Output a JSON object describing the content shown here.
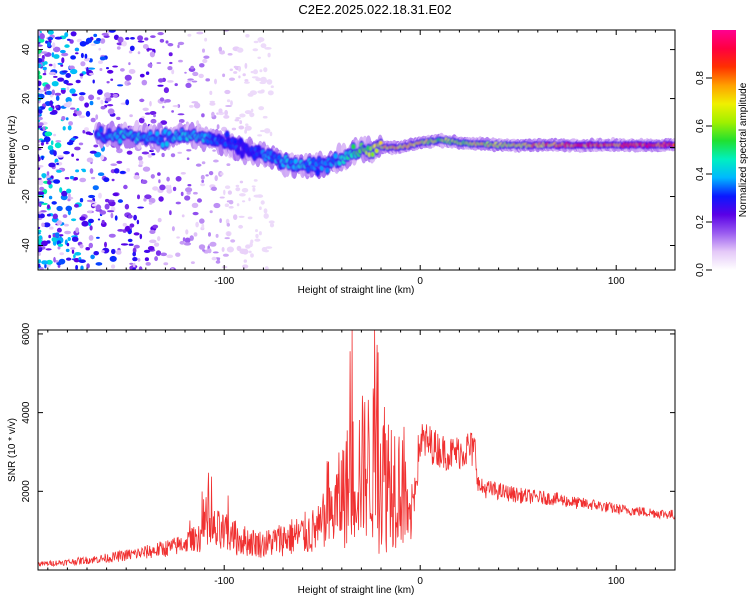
{
  "title": "C2E2.2025.022.18.31.E02",
  "colors": {
    "snr_line": "#f03030",
    "axis": "#000000"
  },
  "chart_data": [
    {
      "type": "heatmap",
      "xlabel": "Height of straight line (km)",
      "ylabel": "Frequency (Hz)",
      "xlim": [
        -195,
        130
      ],
      "ylim": [
        -50,
        48
      ],
      "xticks": [
        -100,
        0,
        100
      ],
      "yticks": [
        -40,
        -20,
        0,
        20,
        40
      ],
      "colorbar": {
        "label": "Normalized spectral amplitude",
        "range": [
          0,
          1
        ],
        "ticks": [
          "0.0",
          "0.2",
          "0.4",
          "0.6",
          "0.8"
        ],
        "colormap": [
          "#ffffff",
          "#e4c8f8",
          "#9a5cf0",
          "#5a00e6",
          "#0a18ff",
          "#00b8ff",
          "#00f0c0",
          "#20e030",
          "#a0f000",
          "#f0f000",
          "#ffa000",
          "#ff3000",
          "#ff0040",
          "#ff0090"
        ]
      },
      "ridge": {
        "x": [
          -165,
          -150,
          -130,
          -115,
          -100,
          -90,
          -80,
          -70,
          -60,
          -50,
          -40,
          -30,
          -20,
          -10,
          0,
          10,
          20,
          40,
          60,
          80,
          100,
          120,
          130
        ],
        "frequency": [
          5,
          5,
          4,
          5,
          2,
          -1,
          -3,
          -6,
          -8,
          -7,
          -4,
          -1,
          0,
          0,
          2,
          3,
          2,
          1,
          1,
          1,
          1,
          1,
          1
        ],
        "amplitude": [
          0.35,
          0.4,
          0.38,
          0.4,
          0.33,
          0.3,
          0.35,
          0.38,
          0.4,
          0.35,
          0.42,
          0.55,
          0.7,
          0.75,
          0.7,
          0.6,
          0.65,
          0.7,
          0.75,
          0.85,
          0.85,
          0.9,
          0.9
        ]
      }
    },
    {
      "type": "line",
      "xlabel": "Height of straight line (km)",
      "ylabel": "SNR (10 * v/v)",
      "xlim": [
        -195,
        130
      ],
      "ylim": [
        0,
        6100
      ],
      "xticks": [
        -100,
        0,
        100
      ],
      "yticks": [
        2000,
        4000,
        6000
      ],
      "series": [
        {
          "color": "#f03030",
          "x": [
            -195,
            -180,
            -160,
            -140,
            -125,
            -115,
            -108,
            -100,
            -90,
            -80,
            -70,
            -60,
            -50,
            -45,
            -40,
            -35,
            -30,
            -25,
            -20,
            -15,
            -10,
            -5,
            0,
            5,
            10,
            15,
            20,
            25,
            28,
            30,
            40,
            50,
            60,
            70,
            80,
            90,
            100,
            110,
            120,
            130
          ],
          "y": [
            150,
            200,
            300,
            450,
            600,
            800,
            1000,
            900,
            750,
            650,
            800,
            900,
            1050,
            1400,
            1900,
            2300,
            2600,
            2700,
            2500,
            2400,
            2200,
            1200,
            3300,
            3200,
            3050,
            2950,
            3000,
            3100,
            3000,
            2100,
            2000,
            1900,
            1850,
            1800,
            1700,
            1650,
            1550,
            1500,
            1450,
            1400
          ],
          "spread": [
            60,
            80,
            120,
            180,
            240,
            320,
            650,
            550,
            400,
            350,
            450,
            550,
            650,
            900,
            1400,
            1700,
            1900,
            2000,
            2200,
            1900,
            1600,
            700,
            550,
            500,
            450,
            450,
            450,
            500,
            500,
            250,
            220,
            200,
            180,
            170,
            160,
            150,
            140,
            130,
            130,
            130
          ]
        }
      ]
    }
  ]
}
